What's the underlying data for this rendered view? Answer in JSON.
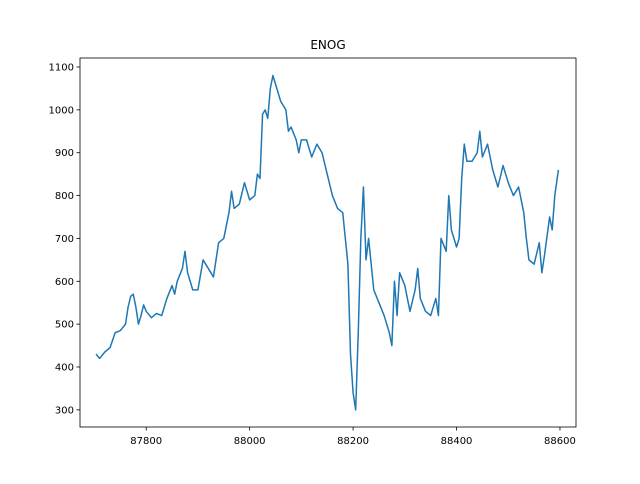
{
  "chart_data": {
    "type": "line",
    "title": "ENOG",
    "x": [
      87703,
      87710,
      87720,
      87730,
      87740,
      87750,
      87760,
      87765,
      87770,
      87775,
      87780,
      87785,
      87790,
      87795,
      87800,
      87810,
      87820,
      87830,
      87840,
      87850,
      87855,
      87860,
      87870,
      87875,
      87880,
      87890,
      87900,
      87910,
      87920,
      87930,
      87940,
      87950,
      87960,
      87965,
      87970,
      87980,
      87990,
      88000,
      88010,
      88015,
      88020,
      88025,
      88030,
      88035,
      88040,
      88045,
      88050,
      88060,
      88070,
      88075,
      88080,
      88090,
      88095,
      88100,
      88110,
      88120,
      88130,
      88140,
      88150,
      88160,
      88170,
      88180,
      88185,
      88190,
      88195,
      88200,
      88205,
      88210,
      88215,
      88220,
      88225,
      88230,
      88240,
      88250,
      88260,
      88270,
      88275,
      88280,
      88285,
      88290,
      88300,
      88310,
      88320,
      88325,
      88330,
      88340,
      88350,
      88360,
      88365,
      88370,
      88380,
      88385,
      88390,
      88400,
      88405,
      88410,
      88415,
      88420,
      88430,
      88440,
      88445,
      88450,
      88460,
      88470,
      88480,
      88490,
      88500,
      88510,
      88520,
      88530,
      88535,
      88540,
      88550,
      88560,
      88565,
      88570,
      88580,
      88585,
      88590,
      88597
    ],
    "series": [
      {
        "name": "ENOG",
        "color": "#1f77b4",
        "values": [
          430,
          420,
          435,
          445,
          480,
          485,
          500,
          540,
          565,
          570,
          540,
          500,
          520,
          545,
          530,
          515,
          525,
          520,
          560,
          590,
          570,
          600,
          630,
          670,
          620,
          580,
          580,
          650,
          630,
          610,
          690,
          700,
          760,
          810,
          770,
          780,
          830,
          790,
          800,
          850,
          840,
          990,
          1000,
          980,
          1050,
          1080,
          1060,
          1020,
          1000,
          950,
          960,
          930,
          900,
          930,
          930,
          890,
          920,
          900,
          850,
          800,
          770,
          760,
          700,
          640,
          430,
          340,
          300,
          480,
          700,
          820,
          650,
          700,
          580,
          550,
          520,
          480,
          450,
          600,
          520,
          620,
          590,
          530,
          580,
          630,
          560,
          530,
          520,
          560,
          520,
          700,
          670,
          800,
          720,
          680,
          700,
          840,
          920,
          880,
          880,
          900,
          950,
          890,
          920,
          860,
          820,
          870,
          830,
          800,
          820,
          760,
          700,
          650,
          640,
          690,
          620,
          660,
          750,
          720,
          800,
          860
        ]
      }
    ],
    "xlim": [
      87672,
      88631
    ],
    "ylim": [
      260,
      1121
    ],
    "xticks": [
      87800,
      88000,
      88200,
      88400,
      88600
    ],
    "yticks": [
      300,
      400,
      500,
      600,
      700,
      800,
      900,
      1000,
      1100
    ]
  }
}
